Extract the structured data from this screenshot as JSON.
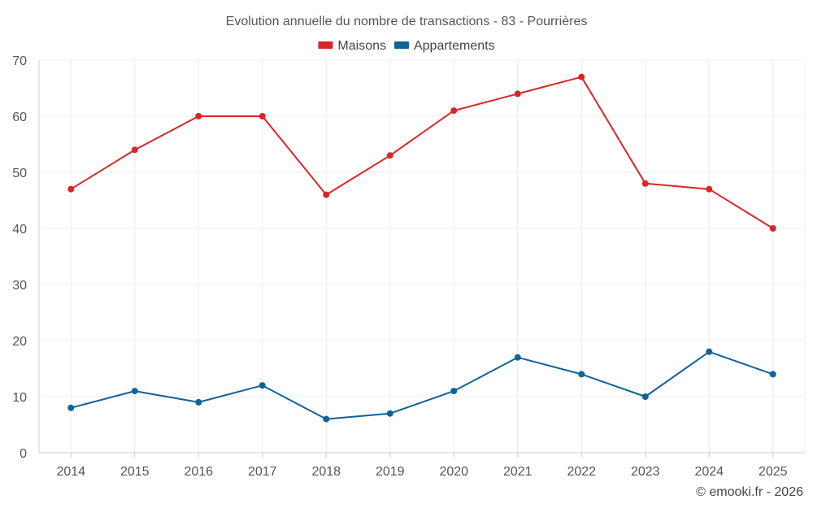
{
  "chart_data": {
    "type": "line",
    "title": "Evolution annuelle du nombre de transactions - 83 - Pourrières",
    "categories": [
      "2014",
      "2015",
      "2016",
      "2017",
      "2018",
      "2019",
      "2020",
      "2021",
      "2022",
      "2023",
      "2024",
      "2025"
    ],
    "series": [
      {
        "name": "Maisons",
        "color": "#d62728",
        "values": [
          47,
          54,
          60,
          60,
          46,
          53,
          61,
          64,
          67,
          48,
          47,
          40
        ]
      },
      {
        "name": "Appartements",
        "color": "#0f6398",
        "values": [
          8,
          11,
          9,
          12,
          6,
          7,
          11,
          17,
          14,
          10,
          18,
          14
        ]
      }
    ],
    "ylim": [
      0,
      70
    ],
    "yticks": [
      0,
      10,
      20,
      30,
      40,
      50,
      60,
      70
    ],
    "grid": true,
    "legend_position": "top-center",
    "xlabel": "",
    "ylabel": ""
  },
  "credit": "© emooki.fr - 2026"
}
